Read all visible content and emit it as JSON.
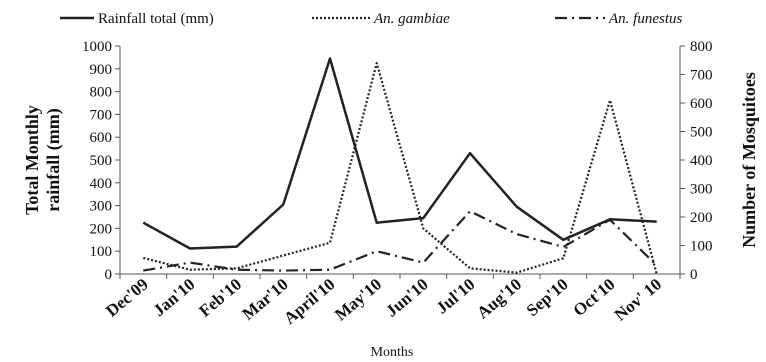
{
  "chart_data": {
    "type": "line",
    "categories": [
      "Dec'09",
      "Jan'10",
      "Feb'10",
      "Mar'10",
      "April'10",
      "May'10",
      "Jun'10",
      "Jul'10",
      "Aug'10",
      "Sep'10",
      "Oct'10",
      "Nov' 10"
    ],
    "xlabel": "Months",
    "ylabel_left": [
      "Total Monthly",
      "rainfall (mm)"
    ],
    "ylabel_right": "Number of Mosquitoes",
    "ylim_left": [
      0,
      1000
    ],
    "ylim_right": [
      0,
      800
    ],
    "yticks_left": [
      "0",
      "100",
      "200",
      "300",
      "400",
      "500",
      "600",
      "700",
      "800",
      "900",
      "1000"
    ],
    "yticks_right": [
      "0",
      "100",
      "200",
      "300",
      "400",
      "500",
      "600",
      "700",
      "800"
    ],
    "grid": false,
    "legend_position": "top",
    "series": [
      {
        "name": "Rainfall total (mm)",
        "axis": "left",
        "style": "solid",
        "color": "#222222",
        "values": [
          225,
          112,
          120,
          305,
          945,
          225,
          245,
          530,
          295,
          150,
          240,
          230
        ]
      },
      {
        "name": "An. gambiae",
        "axis": "right",
        "style": "dotted",
        "color": "#222222",
        "values": [
          56,
          15,
          20,
          65,
          110,
          740,
          160,
          20,
          5,
          55,
          610,
          0
        ]
      },
      {
        "name": "An. funestus",
        "axis": "right",
        "style": "dashdot",
        "color": "#222222",
        "values": [
          12,
          40,
          15,
          12,
          15,
          80,
          40,
          220,
          140,
          95,
          190,
          30
        ]
      }
    ]
  }
}
